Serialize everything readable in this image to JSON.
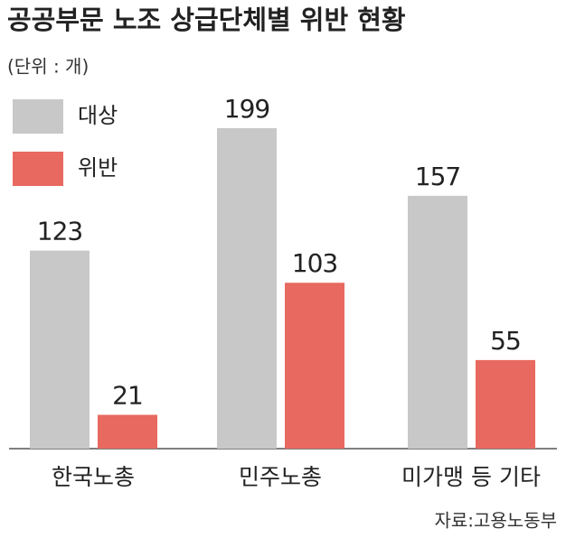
{
  "chart_data": {
    "type": "bar",
    "title": "공공부문 노조 상급단체별 위반 현황",
    "subtitle": "(단위 : 개)",
    "source": "자료:고용노동부",
    "categories": [
      "한국노총",
      "민주노총",
      "미가맹 등 기타"
    ],
    "series": [
      {
        "name": "대상",
        "color": "#c8c8c8",
        "values": [
          123,
          199,
          157
        ]
      },
      {
        "name": "위반",
        "color": "#e8695f",
        "values": [
          21,
          103,
          55
        ]
      }
    ]
  }
}
